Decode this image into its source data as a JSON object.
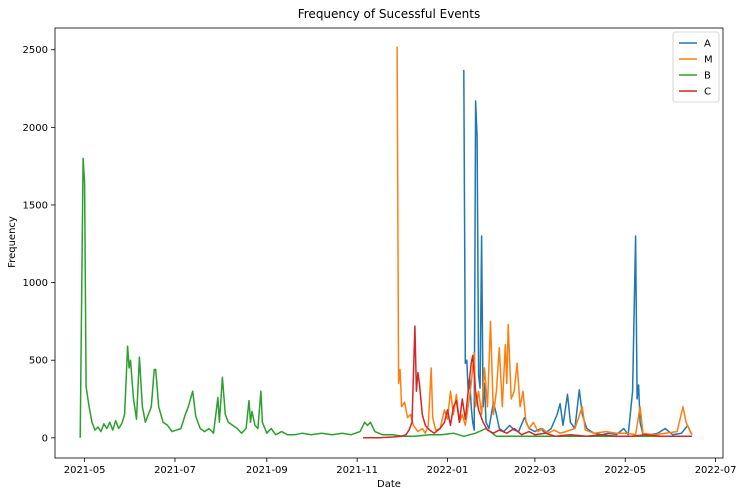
{
  "chart_data": {
    "type": "line",
    "title": "Frequency of Sucessful Events",
    "xlabel": "Date",
    "ylabel": "Frequency",
    "xlim": [
      "2021-04-11",
      "2022-07-06"
    ],
    "ylim": [
      -130,
      2640
    ],
    "x_ticks": [
      {
        "date": "2021-05-01",
        "label": "2021-05"
      },
      {
        "date": "2021-07-01",
        "label": "2021-07"
      },
      {
        "date": "2021-09-01",
        "label": "2021-09"
      },
      {
        "date": "2021-11-01",
        "label": "2021-11"
      },
      {
        "date": "2022-01-01",
        "label": "2022-01"
      },
      {
        "date": "2022-03-01",
        "label": "2022-03"
      },
      {
        "date": "2022-05-01",
        "label": "2022-05"
      },
      {
        "date": "2022-07-01",
        "label": "2022-07"
      }
    ],
    "y_ticks": [
      0,
      500,
      1000,
      1500,
      2000,
      2500
    ],
    "grid": false,
    "legend_position": "top-right",
    "series": [
      {
        "name": "A",
        "color": "#1f77b4",
        "points": [
          [
            "2022-01-12",
            2370
          ],
          [
            "2022-01-13",
            480
          ],
          [
            "2022-01-14",
            500
          ],
          [
            "2022-01-15",
            300
          ],
          [
            "2022-01-16",
            380
          ],
          [
            "2022-01-17",
            200
          ],
          [
            "2022-01-18",
            100
          ],
          [
            "2022-01-19",
            50
          ],
          [
            "2022-01-20",
            2170
          ],
          [
            "2022-01-21",
            1940
          ],
          [
            "2022-01-22",
            400
          ],
          [
            "2022-01-23",
            320
          ],
          [
            "2022-01-24",
            1300
          ],
          [
            "2022-01-25",
            200
          ],
          [
            "2022-01-26",
            350
          ],
          [
            "2022-01-27",
            100
          ],
          [
            "2022-01-29",
            60
          ],
          [
            "2022-02-01",
            230
          ],
          [
            "2022-02-03",
            150
          ],
          [
            "2022-02-05",
            60
          ],
          [
            "2022-02-08",
            40
          ],
          [
            "2022-02-12",
            80
          ],
          [
            "2022-02-15",
            50
          ],
          [
            "2022-02-18",
            40
          ],
          [
            "2022-02-22",
            130
          ],
          [
            "2022-02-25",
            60
          ],
          [
            "2022-03-01",
            40
          ],
          [
            "2022-03-05",
            60
          ],
          [
            "2022-03-08",
            30
          ],
          [
            "2022-03-12",
            60
          ],
          [
            "2022-03-16",
            150
          ],
          [
            "2022-03-18",
            220
          ],
          [
            "2022-03-20",
            80
          ],
          [
            "2022-03-23",
            280
          ],
          [
            "2022-03-25",
            100
          ],
          [
            "2022-03-28",
            60
          ],
          [
            "2022-03-31",
            310
          ],
          [
            "2022-04-02",
            150
          ],
          [
            "2022-04-05",
            60
          ],
          [
            "2022-04-10",
            30
          ],
          [
            "2022-04-15",
            20
          ],
          [
            "2022-04-20",
            30
          ],
          [
            "2022-04-25",
            20
          ],
          [
            "2022-04-30",
            60
          ],
          [
            "2022-05-03",
            20
          ],
          [
            "2022-05-06",
            300
          ],
          [
            "2022-05-08",
            1300
          ],
          [
            "2022-05-09",
            250
          ],
          [
            "2022-05-10",
            340
          ],
          [
            "2022-05-11",
            100
          ],
          [
            "2022-05-13",
            20
          ],
          [
            "2022-05-18",
            20
          ],
          [
            "2022-05-23",
            30
          ],
          [
            "2022-05-28",
            60
          ],
          [
            "2022-06-02",
            20
          ],
          [
            "2022-06-08",
            30
          ],
          [
            "2022-06-12",
            80
          ],
          [
            "2022-06-15",
            20
          ]
        ]
      },
      {
        "name": "M",
        "color": "#ff7f0e",
        "points": [
          [
            "2021-11-28",
            2520
          ],
          [
            "2021-11-29",
            350
          ],
          [
            "2021-11-30",
            440
          ],
          [
            "2021-12-01",
            200
          ],
          [
            "2021-12-03",
            230
          ],
          [
            "2021-12-05",
            130
          ],
          [
            "2021-12-07",
            150
          ],
          [
            "2021-12-09",
            80
          ],
          [
            "2021-12-12",
            40
          ],
          [
            "2021-12-15",
            60
          ],
          [
            "2021-12-17",
            30
          ],
          [
            "2021-12-19",
            80
          ],
          [
            "2021-12-21",
            450
          ],
          [
            "2021-12-22",
            130
          ],
          [
            "2021-12-24",
            50
          ],
          [
            "2021-12-27",
            60
          ],
          [
            "2021-12-30",
            180
          ],
          [
            "2022-01-01",
            120
          ],
          [
            "2022-01-03",
            300
          ],
          [
            "2022-01-05",
            150
          ],
          [
            "2022-01-07",
            280
          ],
          [
            "2022-01-09",
            100
          ],
          [
            "2022-01-11",
            150
          ],
          [
            "2022-01-13",
            80
          ],
          [
            "2022-01-15",
            200
          ],
          [
            "2022-01-17",
            350
          ],
          [
            "2022-01-19",
            550
          ],
          [
            "2022-01-20",
            200
          ],
          [
            "2022-01-22",
            300
          ],
          [
            "2022-01-24",
            150
          ],
          [
            "2022-01-26",
            450
          ],
          [
            "2022-01-28",
            200
          ],
          [
            "2022-01-30",
            750
          ],
          [
            "2022-02-01",
            150
          ],
          [
            "2022-02-03",
            300
          ],
          [
            "2022-02-05",
            580
          ],
          [
            "2022-02-07",
            200
          ],
          [
            "2022-02-09",
            600
          ],
          [
            "2022-02-10",
            350
          ],
          [
            "2022-02-11",
            730
          ],
          [
            "2022-02-13",
            250
          ],
          [
            "2022-02-15",
            300
          ],
          [
            "2022-02-17",
            480
          ],
          [
            "2022-02-19",
            200
          ],
          [
            "2022-02-21",
            300
          ],
          [
            "2022-02-23",
            100
          ],
          [
            "2022-02-25",
            60
          ],
          [
            "2022-02-28",
            100
          ],
          [
            "2022-03-03",
            40
          ],
          [
            "2022-03-06",
            60
          ],
          [
            "2022-03-10",
            30
          ],
          [
            "2022-03-14",
            50
          ],
          [
            "2022-03-18",
            30
          ],
          [
            "2022-03-22",
            40
          ],
          [
            "2022-03-28",
            60
          ],
          [
            "2022-04-02",
            200
          ],
          [
            "2022-04-04",
            50
          ],
          [
            "2022-04-10",
            30
          ],
          [
            "2022-04-18",
            40
          ],
          [
            "2022-04-25",
            30
          ],
          [
            "2022-05-02",
            30
          ],
          [
            "2022-05-08",
            20
          ],
          [
            "2022-05-11",
            200
          ],
          [
            "2022-05-13",
            30
          ],
          [
            "2022-05-20",
            20
          ],
          [
            "2022-05-28",
            30
          ],
          [
            "2022-06-05",
            40
          ],
          [
            "2022-06-09",
            200
          ],
          [
            "2022-06-11",
            100
          ],
          [
            "2022-06-13",
            60
          ],
          [
            "2022-06-15",
            20
          ]
        ]
      },
      {
        "name": "B",
        "color": "#2ca02c",
        "points": [
          [
            "2021-04-28",
            0
          ],
          [
            "2021-04-30",
            1800
          ],
          [
            "2021-05-01",
            1640
          ],
          [
            "2021-05-02",
            330
          ],
          [
            "2021-05-04",
            200
          ],
          [
            "2021-05-06",
            100
          ],
          [
            "2021-05-08",
            50
          ],
          [
            "2021-05-10",
            70
          ],
          [
            "2021-05-12",
            40
          ],
          [
            "2021-05-14",
            90
          ],
          [
            "2021-05-16",
            60
          ],
          [
            "2021-05-18",
            100
          ],
          [
            "2021-05-20",
            50
          ],
          [
            "2021-05-22",
            110
          ],
          [
            "2021-05-24",
            60
          ],
          [
            "2021-05-26",
            90
          ],
          [
            "2021-05-28",
            150
          ],
          [
            "2021-05-30",
            590
          ],
          [
            "2021-05-31",
            450
          ],
          [
            "2021-06-01",
            500
          ],
          [
            "2021-06-03",
            250
          ],
          [
            "2021-06-05",
            120
          ],
          [
            "2021-06-07",
            520
          ],
          [
            "2021-06-09",
            200
          ],
          [
            "2021-06-11",
            100
          ],
          [
            "2021-06-13",
            150
          ],
          [
            "2021-06-15",
            200
          ],
          [
            "2021-06-17",
            440
          ],
          [
            "2021-06-18",
            440
          ],
          [
            "2021-06-20",
            200
          ],
          [
            "2021-06-23",
            100
          ],
          [
            "2021-06-26",
            80
          ],
          [
            "2021-06-29",
            40
          ],
          [
            "2021-07-02",
            50
          ],
          [
            "2021-07-05",
            60
          ],
          [
            "2021-07-08",
            150
          ],
          [
            "2021-07-10",
            200
          ],
          [
            "2021-07-13",
            300
          ],
          [
            "2021-07-15",
            140
          ],
          [
            "2021-07-18",
            60
          ],
          [
            "2021-07-21",
            40
          ],
          [
            "2021-07-24",
            60
          ],
          [
            "2021-07-27",
            30
          ],
          [
            "2021-07-30",
            260
          ],
          [
            "2021-07-31",
            100
          ],
          [
            "2021-08-02",
            390
          ],
          [
            "2021-08-04",
            150
          ],
          [
            "2021-08-06",
            100
          ],
          [
            "2021-08-09",
            80
          ],
          [
            "2021-08-12",
            60
          ],
          [
            "2021-08-15",
            30
          ],
          [
            "2021-08-18",
            60
          ],
          [
            "2021-08-20",
            240
          ],
          [
            "2021-08-21",
            100
          ],
          [
            "2021-08-22",
            170
          ],
          [
            "2021-08-24",
            80
          ],
          [
            "2021-08-26",
            60
          ],
          [
            "2021-08-28",
            300
          ],
          [
            "2021-08-29",
            100
          ],
          [
            "2021-09-01",
            30
          ],
          [
            "2021-09-04",
            60
          ],
          [
            "2021-09-07",
            20
          ],
          [
            "2021-09-11",
            40
          ],
          [
            "2021-09-15",
            20
          ],
          [
            "2021-09-20",
            20
          ],
          [
            "2021-09-25",
            30
          ],
          [
            "2021-10-01",
            20
          ],
          [
            "2021-10-08",
            30
          ],
          [
            "2021-10-15",
            20
          ],
          [
            "2021-10-22",
            30
          ],
          [
            "2021-10-28",
            20
          ],
          [
            "2021-11-03",
            40
          ],
          [
            "2021-11-06",
            100
          ],
          [
            "2021-11-08",
            80
          ],
          [
            "2021-11-10",
            100
          ],
          [
            "2021-11-13",
            40
          ],
          [
            "2021-11-18",
            20
          ],
          [
            "2021-11-25",
            20
          ],
          [
            "2021-12-02",
            10
          ],
          [
            "2021-12-10",
            10
          ],
          [
            "2021-12-20",
            20
          ],
          [
            "2021-12-28",
            20
          ],
          [
            "2022-01-05",
            30
          ],
          [
            "2022-01-12",
            10
          ],
          [
            "2022-01-20",
            30
          ],
          [
            "2022-01-27",
            60
          ],
          [
            "2022-02-03",
            10
          ],
          [
            "2022-02-10",
            10
          ],
          [
            "2022-02-17",
            10
          ],
          [
            "2022-02-25",
            10
          ],
          [
            "2022-03-05",
            10
          ],
          [
            "2022-03-15",
            10
          ],
          [
            "2022-03-25",
            10
          ],
          [
            "2022-04-05",
            10
          ],
          [
            "2022-04-15",
            10
          ],
          [
            "2022-04-25",
            10
          ],
          [
            "2022-05-05",
            10
          ],
          [
            "2022-05-15",
            10
          ],
          [
            "2022-05-25",
            10
          ],
          [
            "2022-06-05",
            10
          ],
          [
            "2022-06-15",
            10
          ]
        ]
      },
      {
        "name": "C",
        "color": "#d62728",
        "points": [
          [
            "2021-11-05",
            0
          ],
          [
            "2021-11-15",
            0
          ],
          [
            "2021-11-25",
            5
          ],
          [
            "2021-12-01",
            10
          ],
          [
            "2021-12-04",
            20
          ],
          [
            "2021-12-06",
            50
          ],
          [
            "2021-12-08",
            100
          ],
          [
            "2021-12-10",
            720
          ],
          [
            "2021-12-11",
            300
          ],
          [
            "2021-12-12",
            420
          ],
          [
            "2021-12-13",
            350
          ],
          [
            "2021-12-15",
            150
          ],
          [
            "2021-12-17",
            80
          ],
          [
            "2021-12-20",
            50
          ],
          [
            "2021-12-23",
            30
          ],
          [
            "2021-12-27",
            60
          ],
          [
            "2021-12-30",
            100
          ],
          [
            "2022-01-01",
            180
          ],
          [
            "2022-01-03",
            80
          ],
          [
            "2022-01-05",
            200
          ],
          [
            "2022-01-07",
            240
          ],
          [
            "2022-01-09",
            100
          ],
          [
            "2022-01-11",
            250
          ],
          [
            "2022-01-13",
            120
          ],
          [
            "2022-01-15",
            300
          ],
          [
            "2022-01-17",
            480
          ],
          [
            "2022-01-18",
            530
          ],
          [
            "2022-01-20",
            300
          ],
          [
            "2022-01-22",
            180
          ],
          [
            "2022-01-25",
            100
          ],
          [
            "2022-01-28",
            50
          ],
          [
            "2022-02-01",
            30
          ],
          [
            "2022-02-05",
            50
          ],
          [
            "2022-02-10",
            30
          ],
          [
            "2022-02-15",
            60
          ],
          [
            "2022-02-20",
            20
          ],
          [
            "2022-02-25",
            40
          ],
          [
            "2022-03-01",
            20
          ],
          [
            "2022-03-08",
            30
          ],
          [
            "2022-03-15",
            10
          ],
          [
            "2022-03-25",
            20
          ],
          [
            "2022-04-05",
            10
          ],
          [
            "2022-04-15",
            20
          ],
          [
            "2022-04-25",
            10
          ],
          [
            "2022-05-05",
            10
          ],
          [
            "2022-05-15",
            20
          ],
          [
            "2022-05-25",
            10
          ],
          [
            "2022-06-05",
            10
          ],
          [
            "2022-06-15",
            10
          ]
        ]
      }
    ]
  }
}
